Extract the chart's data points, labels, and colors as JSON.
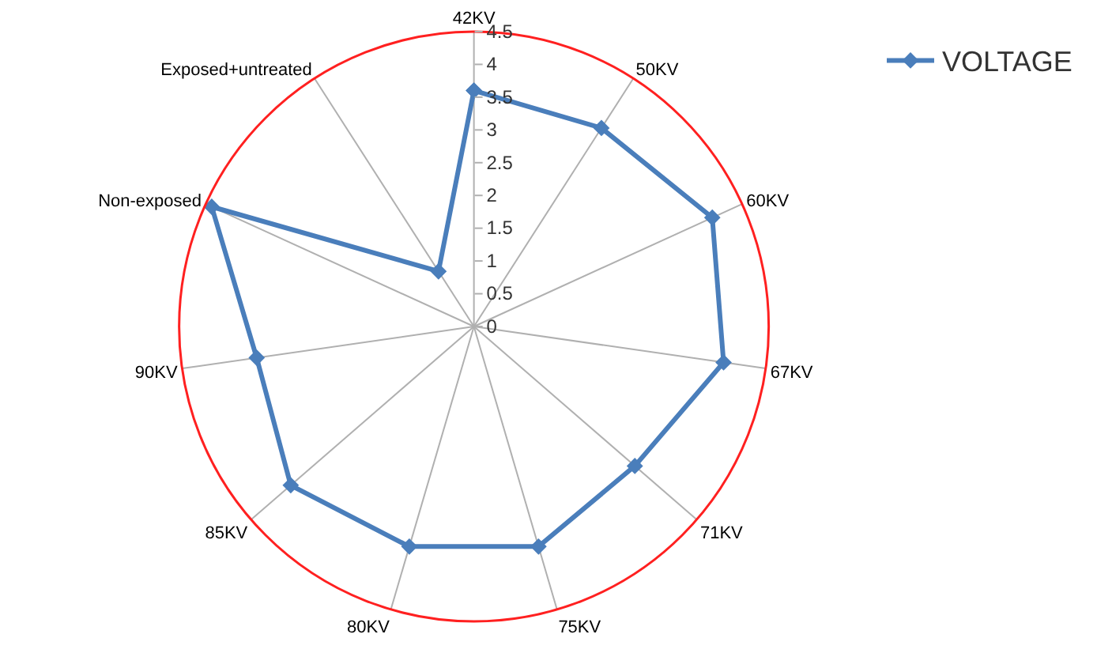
{
  "chart_data": {
    "type": "radar",
    "categories": [
      "42KV",
      "50KV",
      "60KV",
      "67KV",
      "71KV",
      "75KV",
      "80KV",
      "85KV",
      "90KV",
      "Non-exposed",
      "Exposed+untreated"
    ],
    "series": [
      {
        "name": "VOLTAGE",
        "color": "#4a7ebb",
        "values": [
          3.6,
          3.6,
          4.0,
          3.85,
          3.25,
          3.5,
          3.5,
          3.7,
          3.35,
          4.4,
          1.0
        ]
      }
    ],
    "ylim": [
      0,
      4.5
    ],
    "yticks": [
      0,
      0.5,
      1,
      1.5,
      2,
      2.5,
      3,
      3.5,
      4,
      4.5
    ],
    "legend": "top right",
    "marker": "diamond",
    "line_style": "solid",
    "grid": "x"
  }
}
